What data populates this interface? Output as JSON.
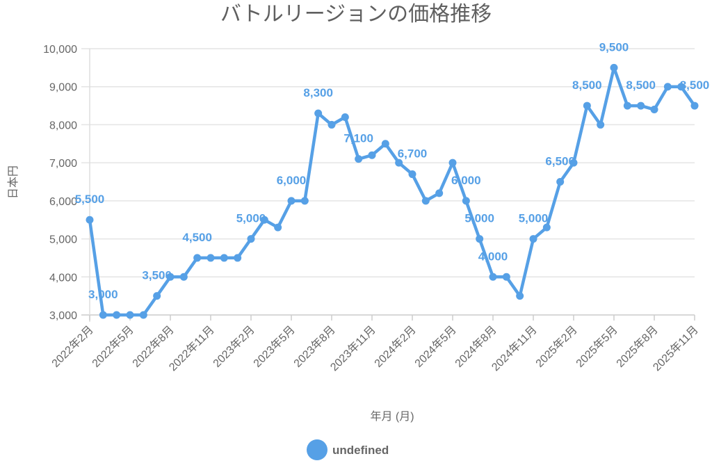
{
  "chart_data": {
    "type": "line",
    "title": "バトルリージョンの価格推移",
    "xlabel": "年月 (月)",
    "ylabel": "日本円",
    "ylim": [
      3000,
      10000
    ],
    "yticks": [
      3000,
      4000,
      5000,
      6000,
      7000,
      8000,
      9000,
      10000
    ],
    "ytick_labels": [
      "3,000",
      "4,000",
      "5,000",
      "6,000",
      "7,000",
      "8,000",
      "9,000",
      "10,000"
    ],
    "grid": true,
    "x": [
      "2022年2月",
      "2022年3月",
      "2022年4月",
      "2022年5月",
      "2022年6月",
      "2022年7月",
      "2022年8月",
      "2022年9月",
      "2022年10月",
      "2022年11月",
      "2022年12月",
      "2023年1月",
      "2023年2月",
      "2023年3月",
      "2023年4月",
      "2023年5月",
      "2023年6月",
      "2023年7月",
      "2023年8月",
      "2023年9月",
      "2023年10月",
      "2023年11月",
      "2023年12月",
      "2024年1月",
      "2024年2月",
      "2024年3月",
      "2024年4月",
      "2024年5月",
      "2024年6月",
      "2024年7月",
      "2024年8月",
      "2024年9月",
      "2024年10月",
      "2024年11月",
      "2024年12月",
      "2025年1月",
      "2025年2月",
      "2025年3月",
      "2025年4月",
      "2025年5月",
      "2025年6月",
      "2025年7月",
      "2025年8月",
      "2025年9月",
      "2025年10月",
      "2025年11月"
    ],
    "xtick_labels": [
      "2022年2月",
      "2022年5月",
      "2022年8月",
      "2022年11月",
      "2023年2月",
      "2023年5月",
      "2023年8月",
      "2023年11月",
      "2024年2月",
      "2024年5月",
      "2024年8月",
      "2024年11月",
      "2025年2月",
      "2025年5月",
      "2025年8月",
      "2025年11月"
    ],
    "series": [
      {
        "name": "undefined",
        "color": "#56a0e6",
        "values": [
          5500,
          3000,
          3000,
          3000,
          3000,
          3500,
          4000,
          4000,
          4500,
          4500,
          4500,
          4500,
          5000,
          5500,
          5300,
          6000,
          6000,
          8300,
          8000,
          8200,
          7100,
          7200,
          7500,
          7000,
          6700,
          6000,
          6200,
          7000,
          6000,
          5000,
          4000,
          4000,
          3500,
          5000,
          5300,
          6500,
          7000,
          8500,
          8000,
          9500,
          8500,
          8500,
          8400,
          9000,
          9000,
          8500
        ]
      }
    ],
    "data_labels": [
      {
        "index": 0,
        "text": "5,500"
      },
      {
        "index": 1,
        "text": "3,000"
      },
      {
        "index": 5,
        "text": "3,500"
      },
      {
        "index": 8,
        "text": "4,500"
      },
      {
        "index": 12,
        "text": "5,000"
      },
      {
        "index": 15,
        "text": "6,000"
      },
      {
        "index": 17,
        "text": "8,300"
      },
      {
        "index": 20,
        "text": "7,100"
      },
      {
        "index": 24,
        "text": "6,700"
      },
      {
        "index": 28,
        "text": "6,000"
      },
      {
        "index": 29,
        "text": "5,000"
      },
      {
        "index": 30,
        "text": "4,000"
      },
      {
        "index": 33,
        "text": "5,000"
      },
      {
        "index": 35,
        "text": "6,500"
      },
      {
        "index": 37,
        "text": "8,500"
      },
      {
        "index": 39,
        "text": "9,500"
      },
      {
        "index": 41,
        "text": "8,500"
      },
      {
        "index": 45,
        "text": "8,500"
      }
    ],
    "legend": {
      "position": "bottom",
      "label": "undefined"
    }
  }
}
